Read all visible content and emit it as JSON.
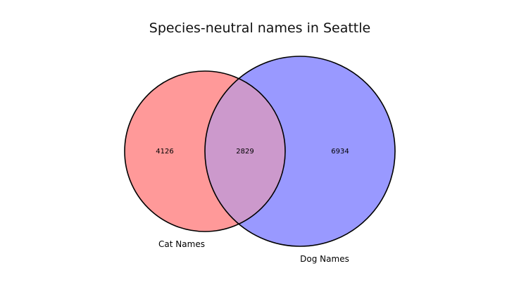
{
  "title": "Species-neutral names in Seattle",
  "sets": {
    "left": {
      "label": "Cat Names",
      "only_count": "4126",
      "color": "#ff9999"
    },
    "right": {
      "label": "Dog Names",
      "only_count": "6934",
      "color": "#9999ff"
    }
  },
  "intersection": {
    "count": "2829",
    "color": "#cc99cc"
  },
  "outline_color": "#000000"
}
